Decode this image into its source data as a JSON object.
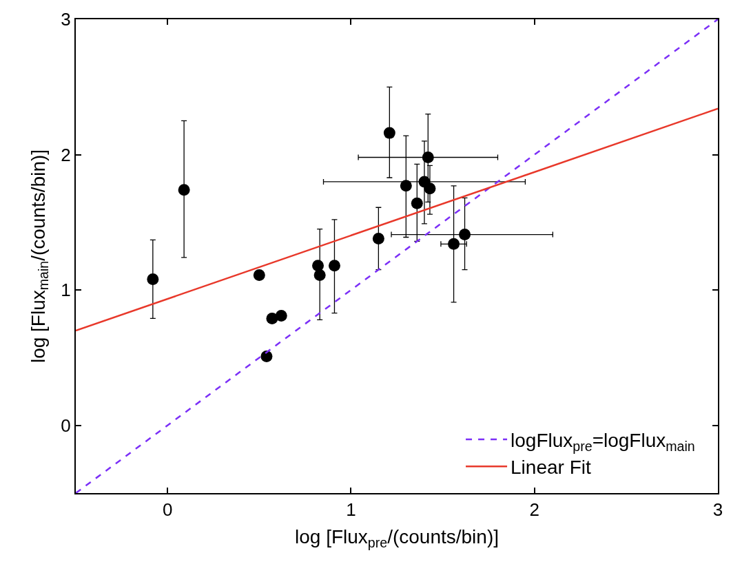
{
  "chart_data": {
    "type": "scatter",
    "xlabel": "log [Flux$_{pre}$/(counts/bin)]",
    "ylabel": "log [Flux$_{main}$/(counts/bin)]",
    "xlim": [
      -0.5,
      3
    ],
    "ylim": [
      -0.5,
      3
    ],
    "xticks": [
      0,
      1,
      2,
      3
    ],
    "yticks": [
      0,
      1,
      2,
      3
    ],
    "grid": false,
    "legend": "bottom right",
    "series": [
      {
        "color": "#000000",
        "marker": "circle",
        "x": [
          -0.08,
          0.09,
          0.5,
          0.54,
          0.57,
          0.62,
          0.82,
          0.83,
          0.91,
          1.15,
          1.21,
          1.3,
          1.36,
          1.4,
          1.42,
          1.43,
          1.56,
          1.62
        ],
        "values": [
          1.08,
          1.74,
          1.11,
          0.51,
          0.79,
          0.81,
          1.18,
          1.11,
          1.18,
          1.38,
          2.16,
          1.77,
          1.64,
          1.8,
          1.98,
          1.75,
          1.34,
          1.41
        ],
        "errors": [
          [
            0.79,
            1.37
          ],
          [
            1.24,
            2.25
          ],
          null,
          null,
          null,
          null,
          null,
          [
            0.78,
            1.45
          ],
          [
            0.83,
            1.52
          ],
          [
            1.15,
            1.61
          ],
          [
            1.83,
            2.5
          ],
          [
            1.39,
            2.14
          ],
          [
            1.36,
            1.93
          ],
          [
            1.49,
            2.1
          ],
          [
            1.65,
            2.3
          ],
          [
            1.56,
            1.92
          ],
          [
            0.91,
            1.77
          ],
          [
            1.15,
            1.68
          ]
        ],
        "xerrors": [
          null,
          null,
          null,
          null,
          null,
          null,
          null,
          null,
          null,
          null,
          null,
          null,
          null,
          [
            0.85,
            1.95
          ],
          [
            1.04,
            1.8
          ],
          null,
          [
            1.49,
            1.63
          ],
          [
            1.22,
            2.1
          ]
        ]
      },
      {
        "type": "line",
        "name": "logFlux$_{pre}$=logFlux$_{main}$",
        "color": "#7b2ff7",
        "line_style": "dashed",
        "marker": "none",
        "x": [
          -0.5,
          3
        ],
        "values": [
          -0.5,
          3
        ]
      },
      {
        "type": "line",
        "name": "Linear Fit",
        "color": "#e8382a",
        "line_style": "solid",
        "marker": "none",
        "x": [
          -0.5,
          3
        ],
        "values": [
          0.7,
          2.34
        ]
      }
    ]
  }
}
